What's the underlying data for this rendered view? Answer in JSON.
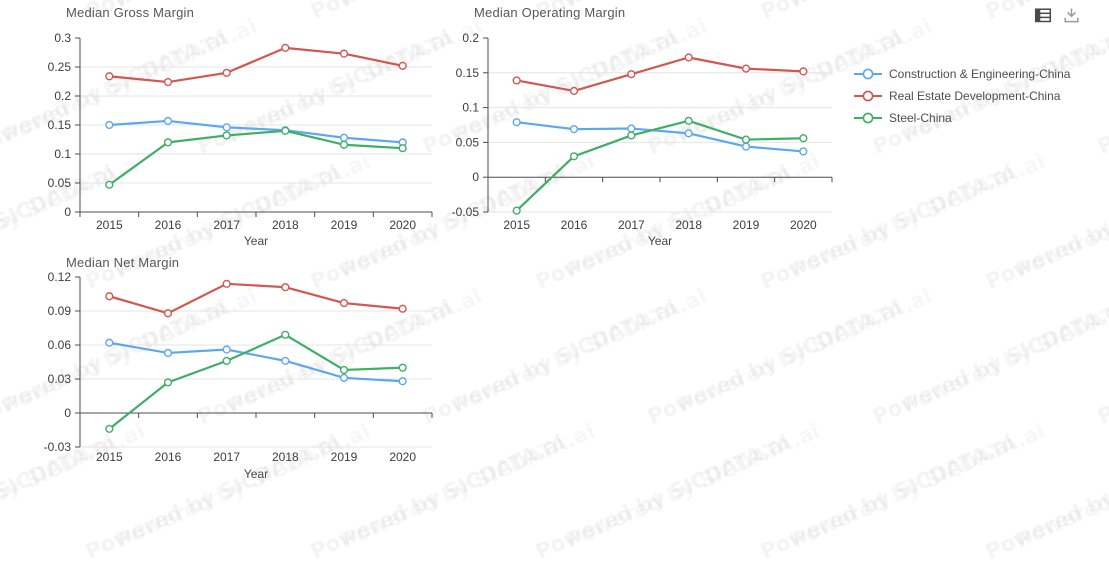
{
  "watermark": {
    "text": "Powered by SICDATA.ai"
  },
  "toolbox": {
    "icons": [
      {
        "name": "data-view-icon"
      },
      {
        "name": "download-icon"
      }
    ]
  },
  "legend": {
    "items": [
      {
        "label": "Construction & Engineering-China",
        "color": "#5ca8f0"
      },
      {
        "label": "Real Estate Development-China",
        "color": "#d2574f"
      },
      {
        "label": "Steel-China",
        "color": "#3fae68"
      }
    ]
  },
  "chart_data": [
    {
      "type": "line",
      "title": "Median Gross Margin",
      "xlabel": "Year",
      "categories": [
        "2015",
        "2016",
        "2017",
        "2018",
        "2019",
        "2020"
      ],
      "ylim": [
        0,
        0.3
      ],
      "ytick_step": 0.05,
      "grid": true,
      "series": [
        {
          "name": "Construction & Engineering-China",
          "color": "#5ca8f0",
          "values": [
            0.15,
            0.157,
            0.146,
            0.141,
            0.128,
            0.12
          ]
        },
        {
          "name": "Real Estate Development-China",
          "color": "#d2574f",
          "values": [
            0.234,
            0.224,
            0.24,
            0.283,
            0.273,
            0.252
          ]
        },
        {
          "name": "Steel-China",
          "color": "#3fae68",
          "values": [
            0.047,
            0.12,
            0.132,
            0.14,
            0.116,
            0.11
          ]
        }
      ]
    },
    {
      "type": "line",
      "title": "Median Operating Margin",
      "xlabel": "Year",
      "categories": [
        "2015",
        "2016",
        "2017",
        "2018",
        "2019",
        "2020"
      ],
      "ylim": [
        -0.05,
        0.2
      ],
      "ytick_step": 0.05,
      "grid": true,
      "series": [
        {
          "name": "Construction & Engineering-China",
          "color": "#5ca8f0",
          "values": [
            0.079,
            0.069,
            0.07,
            0.063,
            0.044,
            0.037
          ]
        },
        {
          "name": "Real Estate Development-China",
          "color": "#d2574f",
          "values": [
            0.139,
            0.124,
            0.148,
            0.172,
            0.156,
            0.152
          ]
        },
        {
          "name": "Steel-China",
          "color": "#3fae68",
          "values": [
            -0.048,
            0.03,
            0.06,
            0.081,
            0.054,
            0.056
          ]
        }
      ]
    },
    {
      "type": "line",
      "title": "Median Net Margin",
      "xlabel": "Year",
      "categories": [
        "2015",
        "2016",
        "2017",
        "2018",
        "2019",
        "2020"
      ],
      "ylim": [
        -0.03,
        0.12
      ],
      "ytick_step": 0.03,
      "grid": true,
      "series": [
        {
          "name": "Construction & Engineering-China",
          "color": "#5ca8f0",
          "values": [
            0.062,
            0.053,
            0.056,
            0.046,
            0.031,
            0.028
          ]
        },
        {
          "name": "Real Estate Development-China",
          "color": "#d2574f",
          "values": [
            0.103,
            0.088,
            0.114,
            0.111,
            0.097,
            0.092
          ]
        },
        {
          "name": "Steel-China",
          "color": "#3fae68",
          "values": [
            -0.014,
            0.027,
            0.046,
            0.069,
            0.038,
            0.04
          ]
        }
      ]
    }
  ]
}
